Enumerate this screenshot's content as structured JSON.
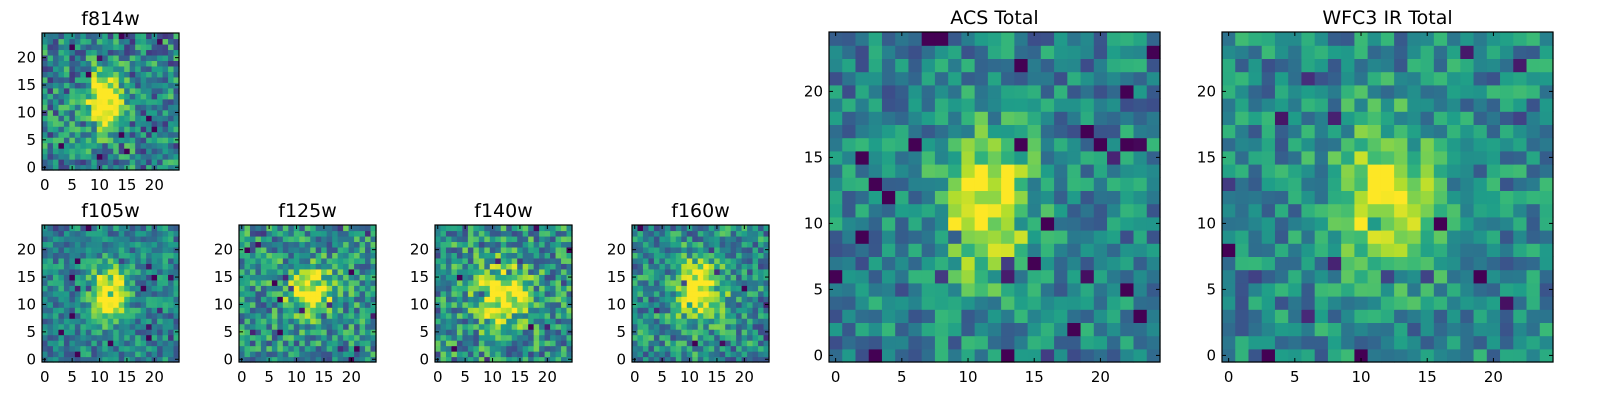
{
  "chart_data": [
    {
      "type": "heatmap",
      "title": "f814w",
      "xticks": [
        "0",
        "5",
        "10",
        "15",
        "20"
      ],
      "yticks": [
        "0",
        "5",
        "10",
        "15",
        "20"
      ],
      "xlim": [
        0,
        25
      ],
      "ylim": [
        0,
        25
      ],
      "grid_size": 25,
      "colormap": "viridis",
      "peak_center": [
        11.5,
        12.5
      ],
      "peak_sigma": [
        2.2,
        3.5
      ],
      "peak_amplitude": 0.8,
      "background": 0.45,
      "noise": 0.3,
      "seed": 11
    },
    {
      "type": "heatmap",
      "title": "f105w",
      "xticks": [
        "0",
        "5",
        "10",
        "15",
        "20"
      ],
      "yticks": [
        "0",
        "5",
        "10",
        "15",
        "20"
      ],
      "xlim": [
        0,
        25
      ],
      "ylim": [
        0,
        25
      ],
      "grid_size": 25,
      "colormap": "viridis",
      "peak_center": [
        12,
        12.5
      ],
      "peak_sigma": [
        2.4,
        3.5
      ],
      "peak_amplitude": 0.7,
      "background": 0.45,
      "noise": 0.22,
      "seed": 23
    },
    {
      "type": "heatmap",
      "title": "f125w",
      "xticks": [
        "0",
        "5",
        "10",
        "15",
        "20"
      ],
      "yticks": [
        "0",
        "5",
        "10",
        "15",
        "20"
      ],
      "xlim": [
        0,
        25
      ],
      "ylim": [
        0,
        25
      ],
      "grid_size": 25,
      "colormap": "viridis",
      "peak_center": [
        13,
        13
      ],
      "peak_sigma": [
        3,
        3
      ],
      "peak_amplitude": 0.55,
      "background": 0.5,
      "noise": 0.28,
      "seed": 37
    },
    {
      "type": "heatmap",
      "title": "f140w",
      "xticks": [
        "0",
        "5",
        "10",
        "15",
        "20"
      ],
      "yticks": [
        "0",
        "5",
        "10",
        "15",
        "20"
      ],
      "xlim": [
        0,
        25
      ],
      "ylim": [
        0,
        25
      ],
      "grid_size": 25,
      "colormap": "viridis",
      "peak_center": [
        12.5,
        12
      ],
      "peak_sigma": [
        3.2,
        4
      ],
      "peak_amplitude": 0.55,
      "background": 0.5,
      "noise": 0.3,
      "seed": 41
    },
    {
      "type": "heatmap",
      "title": "f160w",
      "xticks": [
        "0",
        "5",
        "10",
        "15",
        "20"
      ],
      "yticks": [
        "0",
        "5",
        "10",
        "15",
        "20"
      ],
      "xlim": [
        0,
        25
      ],
      "ylim": [
        0,
        25
      ],
      "grid_size": 25,
      "colormap": "viridis",
      "peak_center": [
        12.5,
        13
      ],
      "peak_sigma": [
        3,
        4
      ],
      "peak_amplitude": 0.6,
      "background": 0.48,
      "noise": 0.27,
      "seed": 53
    },
    {
      "type": "heatmap",
      "title": "ACS Total",
      "xticks": [
        "0",
        "5",
        "10",
        "15",
        "20"
      ],
      "yticks": [
        "0",
        "5",
        "10",
        "15",
        "20"
      ],
      "xlim": [
        0,
        25
      ],
      "ylim": [
        0,
        25
      ],
      "grid_size": 25,
      "colormap": "viridis",
      "peak_center": [
        11.8,
        12
      ],
      "peak_sigma": [
        2.4,
        3.8
      ],
      "peak_amplitude": 0.6,
      "background": 0.45,
      "noise": 0.22,
      "seed": 67
    },
    {
      "type": "heatmap",
      "title": "WFC3 IR Total",
      "xticks": [
        "0",
        "5",
        "10",
        "15",
        "20"
      ],
      "yticks": [
        "0",
        "5",
        "10",
        "15",
        "20"
      ],
      "xlim": [
        0,
        25
      ],
      "ylim": [
        0,
        25
      ],
      "grid_size": 25,
      "colormap": "viridis",
      "peak_center": [
        12.3,
        12.5
      ],
      "peak_sigma": [
        2.6,
        3.8
      ],
      "peak_amplitude": 0.55,
      "background": 0.47,
      "noise": 0.22,
      "seed": 79
    }
  ]
}
